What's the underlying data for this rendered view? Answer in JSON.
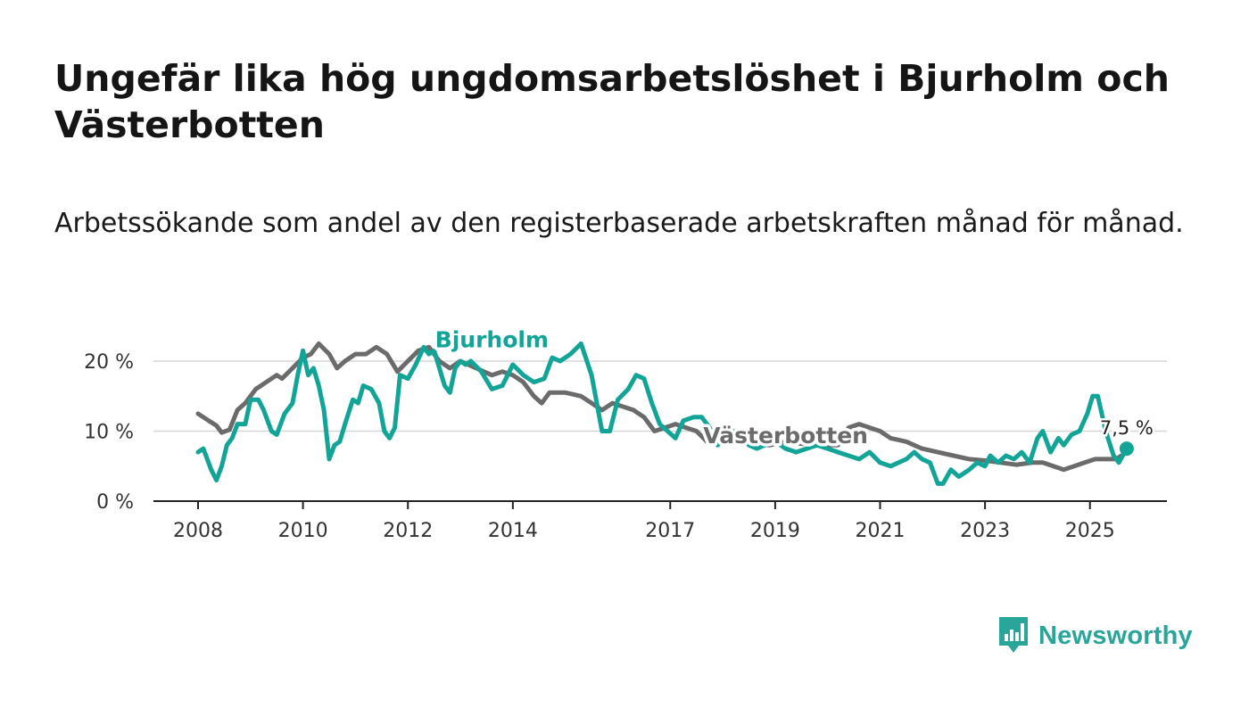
{
  "title": "Ungefär lika hög ungdomsarbetslöshet i Bjurholm och Västerbotten",
  "subtitle": "Arbetssökande som andel av den registerbaserade arbetskraften månad för månad.",
  "brand": {
    "name": "Newsworthy",
    "color": "#2aa59a",
    "icon": "bar-chart-speech-bubble-icon"
  },
  "chart_data": {
    "type": "line",
    "x_unit": "year",
    "xlim": [
      2007.7,
      2026.5
    ],
    "ylim": [
      0,
      22
    ],
    "y_ticks": [
      {
        "value": 0,
        "label": "0 %"
      },
      {
        "value": 10,
        "label": "10 %"
      },
      {
        "value": 20,
        "label": "20 %"
      }
    ],
    "x_ticks": [
      {
        "value": 2008,
        "label": "2008"
      },
      {
        "value": 2010,
        "label": "2010"
      },
      {
        "value": 2012,
        "label": "2012"
      },
      {
        "value": 2014,
        "label": "2014"
      },
      {
        "value": 2017,
        "label": "2017"
      },
      {
        "value": 2019,
        "label": "2019"
      },
      {
        "value": 2021,
        "label": "2021"
      },
      {
        "value": 2023,
        "label": "2023"
      },
      {
        "value": 2025,
        "label": "2025"
      }
    ],
    "grid": true,
    "end_value_label": "7,5 %",
    "series": [
      {
        "name": "Västerbotten",
        "color": "#6b6b6b",
        "label_at": [
          2019.2,
          8.3
        ],
        "points": [
          [
            2008.0,
            12.5
          ],
          [
            2008.2,
            11.5
          ],
          [
            2008.35,
            10.8
          ],
          [
            2008.45,
            9.8
          ],
          [
            2008.6,
            10.2
          ],
          [
            2008.75,
            13.0
          ],
          [
            2008.9,
            14.0
          ],
          [
            2009.1,
            16.0
          ],
          [
            2009.3,
            17.0
          ],
          [
            2009.5,
            18.0
          ],
          [
            2009.6,
            17.5
          ],
          [
            2009.8,
            19.0
          ],
          [
            2010.0,
            20.5
          ],
          [
            2010.15,
            21.0
          ],
          [
            2010.3,
            22.5
          ],
          [
            2010.5,
            21.0
          ],
          [
            2010.65,
            19.0
          ],
          [
            2010.8,
            20.0
          ],
          [
            2011.0,
            21.0
          ],
          [
            2011.2,
            21.0
          ],
          [
            2011.4,
            22.0
          ],
          [
            2011.6,
            21.0
          ],
          [
            2011.8,
            18.5
          ],
          [
            2012.0,
            20.0
          ],
          [
            2012.2,
            21.5
          ],
          [
            2012.4,
            22.0
          ],
          [
            2012.6,
            20.0
          ],
          [
            2012.8,
            19.0
          ],
          [
            2013.0,
            20.0
          ],
          [
            2013.3,
            19.0
          ],
          [
            2013.6,
            18.0
          ],
          [
            2013.8,
            18.5
          ],
          [
            2014.0,
            18.0
          ],
          [
            2014.2,
            17.0
          ],
          [
            2014.4,
            15.0
          ],
          [
            2014.55,
            14.0
          ],
          [
            2014.7,
            15.5
          ],
          [
            2015.0,
            15.5
          ],
          [
            2015.3,
            15.0
          ],
          [
            2015.5,
            14.0
          ],
          [
            2015.7,
            13.0
          ],
          [
            2015.9,
            14.0
          ],
          [
            2016.1,
            13.5
          ],
          [
            2016.3,
            13.0
          ],
          [
            2016.5,
            12.0
          ],
          [
            2016.7,
            10.0
          ],
          [
            2016.9,
            10.5
          ],
          [
            2017.1,
            11.0
          ],
          [
            2017.3,
            10.5
          ],
          [
            2017.5,
            10.0
          ],
          [
            2017.7,
            8.5
          ],
          [
            2017.9,
            9.5
          ],
          [
            2018.1,
            9.0
          ],
          [
            2018.3,
            8.5
          ],
          [
            2018.6,
            8.2
          ],
          [
            2018.9,
            8.0
          ],
          [
            2019.2,
            8.5
          ],
          [
            2019.5,
            8.2
          ],
          [
            2019.8,
            8.0
          ],
          [
            2020.2,
            8.0
          ],
          [
            2020.4,
            10.5
          ],
          [
            2020.6,
            11.0
          ],
          [
            2020.8,
            10.5
          ],
          [
            2021.0,
            10.0
          ],
          [
            2021.2,
            9.0
          ],
          [
            2021.5,
            8.5
          ],
          [
            2021.8,
            7.5
          ],
          [
            2022.1,
            7.0
          ],
          [
            2022.4,
            6.5
          ],
          [
            2022.7,
            6.0
          ],
          [
            2023.0,
            5.8
          ],
          [
            2023.3,
            5.5
          ],
          [
            2023.6,
            5.2
          ],
          [
            2023.9,
            5.5
          ],
          [
            2024.1,
            5.5
          ],
          [
            2024.3,
            5.0
          ],
          [
            2024.5,
            4.5
          ],
          [
            2024.7,
            5.0
          ],
          [
            2024.9,
            5.5
          ],
          [
            2025.1,
            6.0
          ],
          [
            2025.3,
            6.0
          ],
          [
            2025.5,
            6.0
          ],
          [
            2025.6,
            6.5
          ]
        ]
      },
      {
        "name": "Bjurholm",
        "color": "#12a497",
        "label_at": [
          2013.6,
          22.0
        ],
        "points": [
          [
            2008.0,
            7.0
          ],
          [
            2008.1,
            7.5
          ],
          [
            2008.25,
            4.5
          ],
          [
            2008.35,
            3.0
          ],
          [
            2008.45,
            5.0
          ],
          [
            2008.55,
            8.0
          ],
          [
            2008.65,
            9.0
          ],
          [
            2008.75,
            11.0
          ],
          [
            2008.9,
            11.0
          ],
          [
            2009.0,
            14.5
          ],
          [
            2009.15,
            14.5
          ],
          [
            2009.25,
            13.0
          ],
          [
            2009.4,
            10.0
          ],
          [
            2009.5,
            9.5
          ],
          [
            2009.65,
            12.5
          ],
          [
            2009.8,
            14.0
          ],
          [
            2009.9,
            18.0
          ],
          [
            2010.0,
            21.5
          ],
          [
            2010.1,
            18.0
          ],
          [
            2010.2,
            19.0
          ],
          [
            2010.3,
            16.5
          ],
          [
            2010.4,
            13.0
          ],
          [
            2010.5,
            6.0
          ],
          [
            2010.6,
            8.0
          ],
          [
            2010.7,
            8.5
          ],
          [
            2010.8,
            11.0
          ],
          [
            2010.95,
            14.5
          ],
          [
            2011.05,
            14.0
          ],
          [
            2011.15,
            16.5
          ],
          [
            2011.3,
            16.0
          ],
          [
            2011.45,
            14.0
          ],
          [
            2011.55,
            10.0
          ],
          [
            2011.65,
            9.0
          ],
          [
            2011.75,
            10.5
          ],
          [
            2011.85,
            18.0
          ],
          [
            2012.0,
            17.5
          ],
          [
            2012.15,
            19.5
          ],
          [
            2012.3,
            22.0
          ],
          [
            2012.4,
            21.0
          ],
          [
            2012.5,
            21.5
          ],
          [
            2012.6,
            19.0
          ],
          [
            2012.7,
            16.5
          ],
          [
            2012.8,
            15.5
          ],
          [
            2012.9,
            19.0
          ],
          [
            2013.0,
            20.0
          ],
          [
            2013.1,
            19.5
          ],
          [
            2013.2,
            20.0
          ],
          [
            2013.4,
            18.5
          ],
          [
            2013.6,
            16.0
          ],
          [
            2013.8,
            16.5
          ],
          [
            2014.0,
            19.5
          ],
          [
            2014.2,
            18.0
          ],
          [
            2014.4,
            17.0
          ],
          [
            2014.6,
            17.5
          ],
          [
            2014.75,
            20.5
          ],
          [
            2014.9,
            20.0
          ],
          [
            2015.1,
            21.0
          ],
          [
            2015.3,
            22.5
          ],
          [
            2015.5,
            18.0
          ],
          [
            2015.7,
            10.0
          ],
          [
            2015.85,
            10.0
          ],
          [
            2016.0,
            14.5
          ],
          [
            2016.2,
            16.0
          ],
          [
            2016.35,
            18.0
          ],
          [
            2016.5,
            17.5
          ],
          [
            2016.65,
            14.0
          ],
          [
            2016.8,
            11.0
          ],
          [
            2016.95,
            10.0
          ],
          [
            2017.1,
            9.0
          ],
          [
            2017.25,
            11.5
          ],
          [
            2017.45,
            12.0
          ],
          [
            2017.6,
            12.0
          ],
          [
            2017.75,
            10.5
          ],
          [
            2017.9,
            8.0
          ],
          [
            2018.05,
            9.0
          ],
          [
            2018.2,
            10.0
          ],
          [
            2018.35,
            9.5
          ],
          [
            2018.5,
            8.0
          ],
          [
            2018.65,
            7.5
          ],
          [
            2018.8,
            8.0
          ],
          [
            2019.0,
            8.5
          ],
          [
            2019.2,
            7.5
          ],
          [
            2019.4,
            7.0
          ],
          [
            2019.6,
            7.5
          ],
          [
            2019.8,
            8.0
          ],
          [
            2020.0,
            7.5
          ],
          [
            2020.2,
            7.0
          ],
          [
            2020.4,
            6.5
          ],
          [
            2020.6,
            6.0
          ],
          [
            2020.8,
            7.0
          ],
          [
            2021.0,
            5.5
          ],
          [
            2021.2,
            5.0
          ],
          [
            2021.35,
            5.5
          ],
          [
            2021.5,
            6.0
          ],
          [
            2021.65,
            7.0
          ],
          [
            2021.8,
            6.0
          ],
          [
            2021.95,
            5.5
          ],
          [
            2022.1,
            2.5
          ],
          [
            2022.2,
            2.5
          ],
          [
            2022.35,
            4.5
          ],
          [
            2022.5,
            3.5
          ],
          [
            2022.7,
            4.5
          ],
          [
            2022.85,
            5.5
          ],
          [
            2023.0,
            5.0
          ],
          [
            2023.1,
            6.5
          ],
          [
            2023.25,
            5.5
          ],
          [
            2023.4,
            6.5
          ],
          [
            2023.55,
            6.0
          ],
          [
            2023.7,
            7.0
          ],
          [
            2023.85,
            5.5
          ],
          [
            2024.0,
            9.0
          ],
          [
            2024.1,
            10.0
          ],
          [
            2024.25,
            7.0
          ],
          [
            2024.4,
            9.0
          ],
          [
            2024.5,
            8.0
          ],
          [
            2024.65,
            9.5
          ],
          [
            2024.8,
            10.0
          ],
          [
            2024.95,
            12.5
          ],
          [
            2025.05,
            15.0
          ],
          [
            2025.15,
            15.0
          ],
          [
            2025.3,
            10.0
          ],
          [
            2025.45,
            6.5
          ],
          [
            2025.55,
            5.5
          ],
          [
            2025.7,
            7.5
          ]
        ]
      }
    ]
  }
}
